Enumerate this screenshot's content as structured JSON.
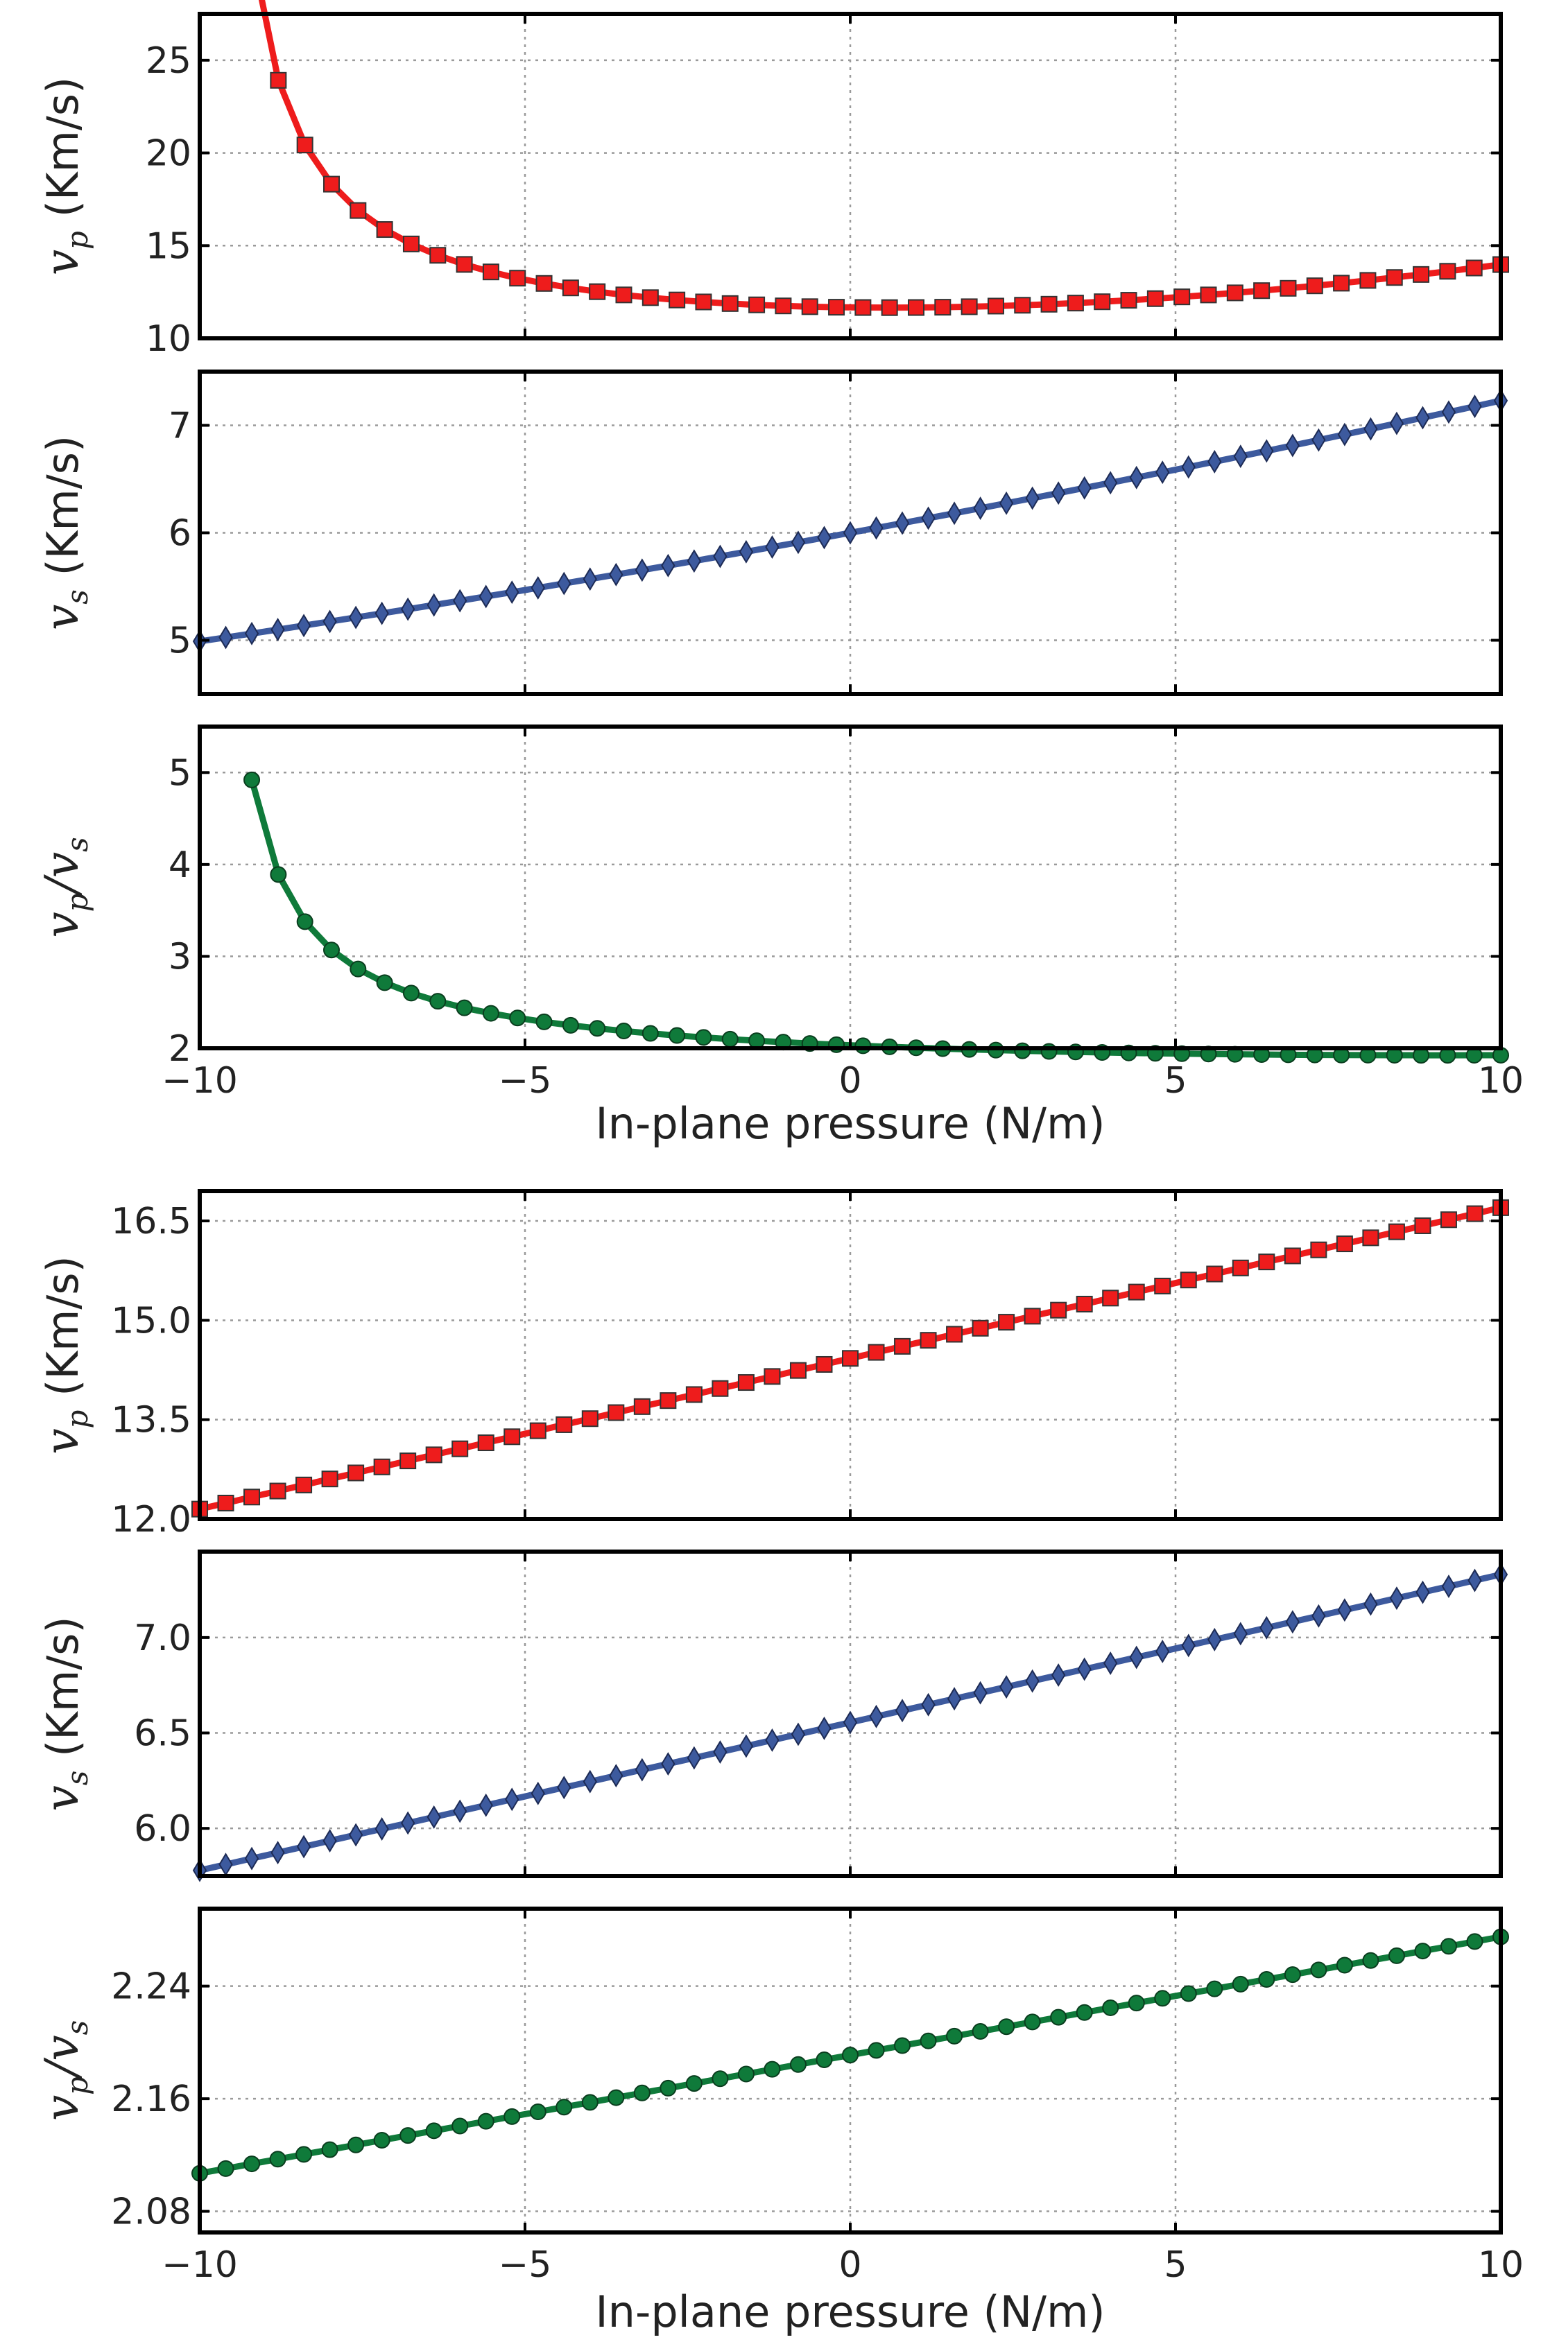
{
  "figure": {
    "xlabel_top": "In-plane pressure (N/m)",
    "xlabel_bottom": "In-plane pressure (N/m)"
  },
  "colors": {
    "red": "#ee1c1c",
    "blue": "#3d5a9e",
    "green": "#0f7a3a",
    "marker_edge": "#333333",
    "grid": "#9a9a9a",
    "frame": "#000000"
  },
  "chart_data": [
    {
      "id": "top-vp",
      "type": "line",
      "marker": "square",
      "color_key": "red",
      "ylabel": {
        "symbol": "v",
        "sub": "p",
        "unit": "(Km/s)"
      },
      "xlim": [
        -10,
        10
      ],
      "ylim": [
        10,
        27.5
      ],
      "xticks": [
        -10,
        -5,
        0,
        5,
        10
      ],
      "yticks": [
        10,
        15,
        20,
        25
      ],
      "ytick_labels": [
        "10",
        "15",
        "20",
        "25"
      ],
      "show_xticks": false,
      "curve": {
        "kind": "hyperbolic",
        "a": 16.3,
        "p0": 10.0,
        "b": -11.9,
        "c": 0.43,
        "pmin": -2.7
      },
      "x_start": -9.2,
      "x_end": 10,
      "n_points": 48
    },
    {
      "id": "top-vs",
      "type": "line",
      "marker": "diamond",
      "color_key": "blue",
      "ylabel": {
        "symbol": "v",
        "sub": "s",
        "unit": "(Km/s)"
      },
      "xlim": [
        -10,
        10
      ],
      "ylim": [
        4.5,
        7.5
      ],
      "xticks": [
        -10,
        -5,
        0,
        5,
        10
      ],
      "yticks": [
        5,
        6,
        7
      ],
      "ytick_labels": [
        "5",
        "6",
        "7"
      ],
      "show_xticks": false,
      "curve": {
        "kind": "quadratic",
        "c0": 6.0,
        "c1": 0.112,
        "c2": 0.0011
      },
      "x_start": -10,
      "x_end": 10,
      "n_points": 51
    },
    {
      "id": "top-ratio",
      "type": "line",
      "marker": "circle",
      "color_key": "green",
      "ylabel": {
        "symbol": "v",
        "sub": "p",
        "sep": "/",
        "symbol2": "v",
        "sub2": "s",
        "unit": ""
      },
      "xlim": [
        -10,
        10
      ],
      "ylim": [
        2,
        5.5
      ],
      "xticks": [
        -10,
        -5,
        0,
        5,
        10
      ],
      "xtick_labels": [
        "−10",
        "−5",
        "0",
        "5",
        "10"
      ],
      "yticks": [
        2,
        3,
        4,
        5
      ],
      "ytick_labels": [
        "2",
        "3",
        "4",
        "5"
      ],
      "show_xticks": true,
      "xlabel_key": "xlabel_top",
      "curve": {
        "kind": "hyperbolic",
        "a": 2.42,
        "p0": 10.0,
        "b": -1.77,
        "c": 0.011,
        "pmin": 2.0
      },
      "x_start": -9.2,
      "x_end": 10,
      "n_points": 48
    },
    {
      "id": "bottom-vp",
      "type": "line",
      "marker": "square",
      "color_key": "red",
      "ylabel": {
        "symbol": "v",
        "sub": "p",
        "unit": "(Km/s)"
      },
      "xlim": [
        -10,
        10
      ],
      "ylim": [
        12.0,
        16.95
      ],
      "xticks": [
        -10,
        -5,
        0,
        5,
        10
      ],
      "yticks": [
        12.0,
        13.5,
        15.0,
        16.5
      ],
      "ytick_labels": [
        "12.0",
        "13.5",
        "15.0",
        "16.5"
      ],
      "show_xticks": false,
      "curve": {
        "kind": "linear",
        "y0": 12.15,
        "y1": 16.7
      },
      "x_start": -10,
      "x_end": 10,
      "n_points": 51
    },
    {
      "id": "bottom-vs",
      "type": "line",
      "marker": "diamond",
      "color_key": "blue",
      "ylabel": {
        "symbol": "v",
        "sub": "s",
        "unit": "(Km/s)"
      },
      "xlim": [
        -10,
        10
      ],
      "ylim": [
        5.75,
        7.45
      ],
      "xticks": [
        -10,
        -5,
        0,
        5,
        10
      ],
      "yticks": [
        6.0,
        6.5,
        7.0
      ],
      "ytick_labels": [
        "6.0",
        "6.5",
        "7.0"
      ],
      "show_xticks": false,
      "curve": {
        "kind": "linear",
        "y0": 5.78,
        "y1": 7.33
      },
      "x_start": -10,
      "x_end": 10,
      "n_points": 51
    },
    {
      "id": "bottom-ratio",
      "type": "line",
      "marker": "circle",
      "color_key": "green",
      "ylabel": {
        "symbol": "v",
        "sub": "p",
        "sep": "/",
        "symbol2": "v",
        "sub2": "s",
        "unit": ""
      },
      "xlim": [
        -10,
        10
      ],
      "ylim": [
        2.065,
        2.295
      ],
      "xticks": [
        -10,
        -5,
        0,
        5,
        10
      ],
      "xtick_labels": [
        "−10",
        "−5",
        "0",
        "5",
        "10"
      ],
      "yticks": [
        2.08,
        2.16,
        2.24
      ],
      "ytick_labels": [
        "2.08",
        "2.16",
        "2.24"
      ],
      "show_xticks": true,
      "xlabel_key": "xlabel_bottom",
      "curve": {
        "kind": "linear",
        "y0": 2.107,
        "y1": 2.275
      },
      "x_start": -10,
      "x_end": 10,
      "n_points": 51
    }
  ]
}
